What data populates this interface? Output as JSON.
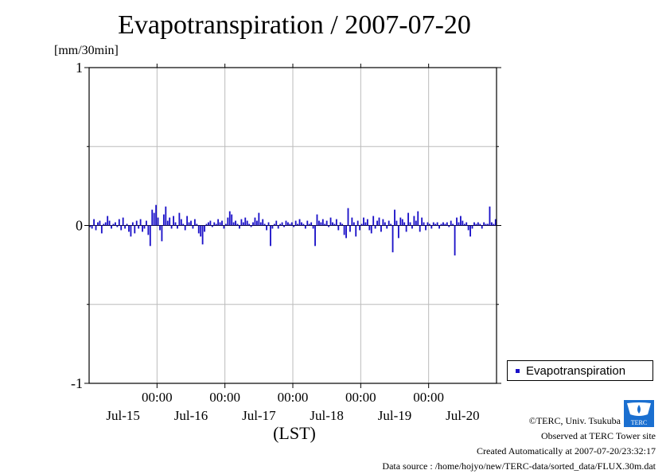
{
  "header": {
    "title": "Evapotranspiration / 2007-07-20",
    "unit": "[mm/30min]"
  },
  "xaxis": {
    "label": "(LST)"
  },
  "legend": {
    "label": "Evapotranspiration"
  },
  "footer": {
    "copyright": "©TERC, Univ. Tsukuba",
    "observed": "Observed at TERC Tower site",
    "created": "Created Automatically at 2007-07-20/23:32:17",
    "source": "Data source : /home/hojyo/new/TERC-data/sorted_data/FLUX.30m.dat"
  },
  "logo": {
    "text": "TERC"
  },
  "chart_data": {
    "type": "bar",
    "title": "Evapotranspiration / 2007-07-20",
    "ylabel": "[mm/30min]",
    "xlabel": "(LST)",
    "ylim": [
      -1,
      1
    ],
    "yticks": [
      "1",
      "0",
      "-1"
    ],
    "xlim_days": [
      -0.5,
      5.5
    ],
    "xtick_time_labels": [
      "00:00",
      "00:00",
      "00:00",
      "00:00",
      "00:00"
    ],
    "xtick_day_labels": [
      "Jul-15",
      "Jul-16",
      "Jul-17",
      "Jul-18",
      "Jul-19",
      "Jul-20"
    ],
    "grid": true,
    "legend_position": "bottom-right outside",
    "series": [
      {
        "name": "Evapotranspiration",
        "color": "#1a10c8",
        "values": [
          -0.01,
          -0.02,
          0.04,
          -0.03,
          0.02,
          0.03,
          -0.05,
          0.01,
          0.02,
          0.06,
          0.03,
          -0.02,
          0.01,
          0.02,
          -0.01,
          0.04,
          -0.03,
          0.05,
          -0.02,
          0.01,
          -0.04,
          -0.07,
          0.02,
          -0.05,
          0.03,
          -0.02,
          0.04,
          -0.04,
          -0.02,
          0.03,
          -0.06,
          -0.13,
          0.1,
          0.08,
          0.13,
          0.05,
          -0.03,
          -0.1,
          0.07,
          0.12,
          0.03,
          0.05,
          -0.02,
          0.06,
          0.02,
          -0.02,
          0.08,
          0.04,
          0.01,
          -0.03,
          0.06,
          0.02,
          0.03,
          -0.02,
          0.04,
          0.01,
          -0.05,
          -0.07,
          -0.12,
          -0.04,
          0.01,
          0.02,
          0.03,
          -0.01,
          0.02,
          0.01,
          0.04,
          0.02,
          0.03,
          -0.02,
          0.01,
          0.05,
          0.09,
          0.07,
          0.02,
          0.03,
          0.01,
          -0.02,
          0.04,
          0.02,
          0.05,
          0.03,
          0.01,
          -0.01,
          0.02,
          0.05,
          0.03,
          0.08,
          0.02,
          0.04,
          0.01,
          -0.03,
          0.02,
          -0.13,
          -0.02,
          0.01,
          0.03,
          -0.02,
          0.01,
          0.02,
          -0.01,
          0.03,
          0.02,
          0.01,
          0.02,
          -0.01,
          0.03,
          0.01,
          0.04,
          0.02,
          0.01,
          -0.02,
          0.03,
          0.01,
          0.02,
          -0.02,
          -0.13,
          0.07,
          0.03,
          0.02,
          0.04,
          0.01,
          0.03,
          -0.01,
          0.05,
          0.02,
          0.01,
          0.04,
          -0.03,
          0.02,
          0.01,
          -0.06,
          -0.08,
          0.11,
          -0.04,
          0.05,
          0.02,
          -0.07,
          0.03,
          -0.03,
          0.01,
          0.05,
          0.02,
          0.04,
          -0.03,
          -0.05,
          0.06,
          -0.02,
          0.03,
          0.05,
          -0.04,
          0.04,
          0.02,
          -0.02,
          0.03,
          0.01,
          -0.17,
          0.1,
          0.03,
          -0.08,
          0.05,
          0.04,
          0.02,
          -0.04,
          0.08,
          0.02,
          -0.02,
          0.06,
          0.03,
          0.09,
          -0.04,
          0.05,
          0.02,
          -0.03,
          0.02,
          0.01,
          -0.02,
          0.02,
          0.01,
          0.02,
          -0.02,
          0.01,
          0.02,
          0.01,
          0.02,
          -0.01,
          0.03,
          0.01,
          -0.19,
          0.05,
          0.02,
          0.06,
          0.03,
          0.01,
          0.02,
          -0.03,
          -0.07,
          -0.02,
          0.02,
          0.01,
          0.02,
          0.01,
          -0.02,
          0.02,
          0.01,
          0.01,
          0.12,
          0.02,
          0.01,
          0.04
        ]
      }
    ]
  }
}
